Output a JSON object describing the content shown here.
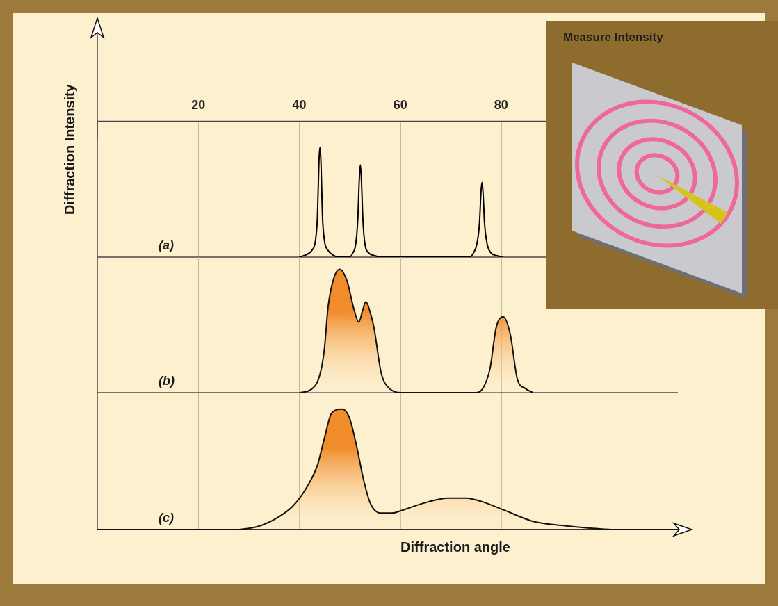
{
  "chart_data": {
    "type": "line",
    "x_label": "Diffraction angle",
    "y_label": "Diffraction Intensity",
    "annotations": [
      "Measure Intensity"
    ],
    "xlim": [
      0,
      115
    ],
    "xticks": [
      20,
      40,
      60,
      80
    ],
    "ylim": [
      0,
      100
    ],
    "grid": true,
    "tick_labels": "x",
    "series": [
      {
        "name": "(a)",
        "type": "line",
        "color": "#000000",
        "x": [
          40.0,
          41.5,
          42.5,
          43.2,
          43.6,
          43.9,
          44.1,
          44.3,
          44.6,
          45.0,
          45.7,
          46.5,
          47.8,
          49.9,
          50.6,
          51.2,
          51.6,
          51.9,
          52.1,
          52.3,
          52.6,
          53.0,
          53.8,
          55.0,
          56.2,
          73.7,
          74.5,
          75.2,
          75.7,
          76.0,
          76.2,
          76.4,
          76.7,
          77.2,
          78.0,
          79.2,
          80.4
        ],
        "values": [
          0,
          2,
          5,
          12,
          30,
          70,
          81,
          70,
          30,
          12,
          5,
          2,
          0,
          0,
          3,
          10,
          28,
          58,
          68,
          58,
          28,
          10,
          3,
          1,
          0,
          0,
          3,
          10,
          25,
          48,
          55,
          48,
          25,
          10,
          3,
          1,
          0
        ]
      },
      {
        "name": "(b)",
        "type": "area",
        "color": "#f08c2a",
        "x": [
          40.1,
          42.2,
          43.6,
          44.5,
          45.0,
          45.7,
          46.8,
          48.0,
          49.5,
          50.8,
          51.8,
          52.5,
          53.2,
          54.0,
          54.8,
          56.2,
          57.6,
          60.4,
          75.1,
          76.5,
          77.8,
          79.0,
          80.4,
          81.8,
          83.2,
          84.8,
          86.3
        ],
        "values": [
          0,
          2,
          8,
          20,
          33,
          63,
          84,
          91,
          82,
          62,
          52,
          60,
          67,
          60,
          48,
          15,
          4,
          0,
          0,
          4,
          18,
          48,
          56,
          43,
          10,
          3,
          0
        ]
      },
      {
        "name": "(c)",
        "type": "area",
        "color": "#f08c2a",
        "x": [
          28.1,
          31.6,
          35.8,
          38.7,
          41.5,
          43.6,
          45.0,
          46.4,
          48.5,
          49.9,
          51.3,
          52.7,
          54.1,
          56.2,
          58.3,
          61.1,
          65.3,
          69.5,
          73.0,
          76.5,
          80.7,
          86.3,
          92.0,
          97.6,
          101.8
        ],
        "values": [
          0,
          2,
          9,
          17,
          31,
          47,
          67,
          85,
          88,
          82,
          62,
          37,
          19,
          12,
          12,
          15,
          20,
          23,
          23,
          20,
          14,
          6,
          3,
          1,
          0
        ]
      }
    ]
  }
}
